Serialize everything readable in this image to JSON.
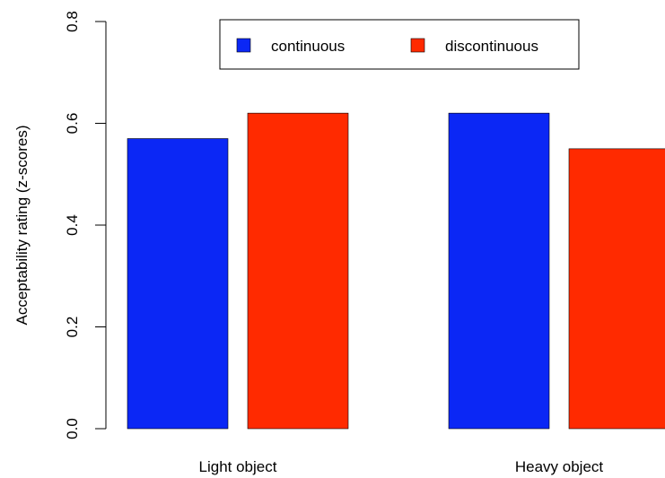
{
  "chart_data": {
    "type": "bar",
    "title": "",
    "xlabel": "",
    "ylabel": "Acceptability rating (z-scores)",
    "categories": [
      "Light object",
      "Heavy object"
    ],
    "series": [
      {
        "name": "continuous",
        "color": "#0b27f5",
        "values": [
          0.57,
          0.62
        ]
      },
      {
        "name": "discontinuous",
        "color": "#ff2a00",
        "values": [
          0.62,
          0.55
        ]
      }
    ],
    "ylim": [
      0,
      0.8
    ],
    "yticks": [
      "0.0",
      "0.2",
      "0.4",
      "0.6",
      "0.8"
    ],
    "grid": false,
    "legend_position": "top-center"
  }
}
